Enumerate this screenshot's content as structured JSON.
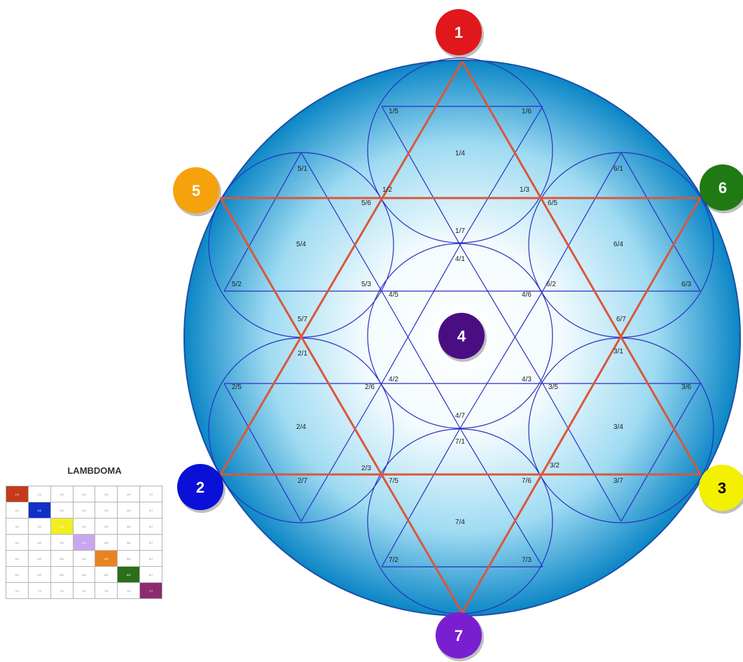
{
  "diagram": {
    "nodes": [
      {
        "label": "1",
        "color": "#e0171b"
      },
      {
        "label": "5",
        "color": "#f6a20c"
      },
      {
        "label": "6",
        "color": "#1f7a14"
      },
      {
        "label": "2",
        "color": "#0b10d8"
      },
      {
        "label": "3",
        "color": "#f3f000"
      },
      {
        "label": "7",
        "color": "#7a1fd0"
      },
      {
        "label": "4",
        "color": "#4a0e82"
      }
    ],
    "ratio_labels": [
      "1/5",
      "1/6",
      "1/4",
      "1/2",
      "1/3",
      "1/7",
      "5/1",
      "5/4",
      "5/6",
      "5/2",
      "5/3",
      "5/7",
      "6/1",
      "6/4",
      "6/5",
      "6/2",
      "6/3",
      "6/7",
      "4/1",
      "4/5",
      "4/6",
      "4/2",
      "4/3",
      "4/7",
      "2/1",
      "2/5",
      "2/6",
      "2/4",
      "2/3",
      "2/7",
      "3/1",
      "3/5",
      "3/6",
      "3/4",
      "3/2",
      "3/7",
      "7/1",
      "7/5",
      "7/6",
      "7/4",
      "7/2",
      "7/3"
    ],
    "colors": {
      "outer_circle_edge": "#0a7fc0",
      "outer_circle_center": "#ffffff",
      "star_lines": "#d9573a",
      "inner_lines": "#2a2fc0"
    }
  },
  "lambdoma": {
    "title": "LAMBDOMA",
    "rows": [
      [
        "1/1",
        "1/2",
        "1/3",
        "1/4",
        "1/5",
        "1/6",
        "1/7"
      ],
      [
        "2/1",
        "2/2",
        "2/3",
        "2/4",
        "2/5",
        "2/6",
        "2/7"
      ],
      [
        "3/1",
        "3/2",
        "3/3",
        "3/4",
        "3/5",
        "3/6",
        "3/7"
      ],
      [
        "4/1",
        "4/2",
        "4/3",
        "4/4",
        "4/5",
        "4/6",
        "4/7"
      ],
      [
        "5/1",
        "5/2",
        "5/3",
        "5/4",
        "5/5",
        "5/6",
        "5/7"
      ],
      [
        "6/1",
        "6/2",
        "6/3",
        "6/4",
        "6/5",
        "6/6",
        "6/7"
      ],
      [
        "7/1",
        "7/2",
        "7/3",
        "7/4",
        "7/5",
        "7/6",
        "7/7"
      ]
    ],
    "diagonal_colors": [
      "#c43a1a",
      "#1230c8",
      "#f2ee20",
      "#c9a7ee",
      "#e88420",
      "#2c6e1a",
      "#8a2c6e"
    ]
  }
}
